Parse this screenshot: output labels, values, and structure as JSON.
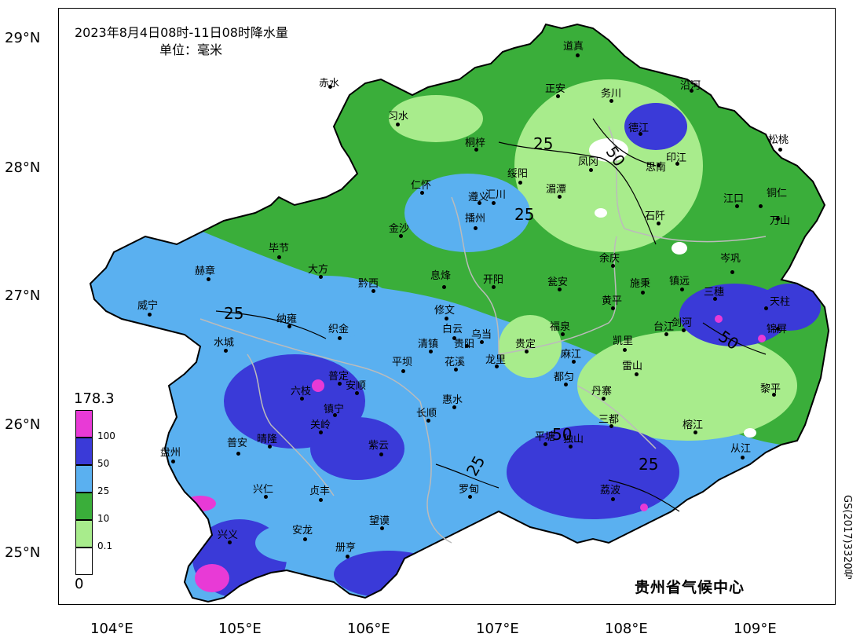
{
  "map": {
    "title": "2023年8月4日08时-11日08时降水量",
    "unit": "单位：毫米",
    "credit": "贵州省气候中心",
    "approval": "GS(2017)3320号",
    "lat_labels": [
      "29°N",
      "28°N",
      "27°N",
      "26°N",
      "25°N"
    ],
    "lon_labels": [
      "104°E",
      "105°E",
      "106°E",
      "107°E",
      "108°E",
      "109°E"
    ],
    "legend": {
      "max": "178.3",
      "min": "0",
      "levels": [
        {
          "label": "100",
          "color": "#e83ad6"
        },
        {
          "label": "50",
          "color": "#3a3ad8"
        },
        {
          "label": "25",
          "color": "#5ab0f0"
        },
        {
          "label": "10",
          "color": "#3aae3a"
        },
        {
          "label": "0.1",
          "color": "#a8ec8c"
        },
        {
          "label": "",
          "color": "#ffffff"
        }
      ]
    },
    "contour_labels": [
      "25",
      "50",
      "25",
      "25",
      "50",
      "50",
      "25",
      "25"
    ],
    "cities": [
      "道真",
      "赤水",
      "正安",
      "务川",
      "沿河",
      "习水",
      "德江",
      "桐梓",
      "松桃",
      "凤冈",
      "印江",
      "思南",
      "绥阳",
      "湄潭",
      "铜仁",
      "仁怀",
      "遵义",
      "汇川",
      "江口",
      "播州",
      "石阡",
      "万山",
      "金沙",
      "毕节",
      "余庆",
      "岑巩",
      "赫章",
      "大方",
      "黔西",
      "息烽",
      "开阳",
      "瓮安",
      "施秉",
      "镇远",
      "三穗",
      "天柱",
      "威宁",
      "纳雍",
      "修文",
      "黄平",
      "锦屏",
      "织金",
      "白云",
      "乌当",
      "福泉",
      "台江",
      "剑河",
      "水城",
      "清镇",
      "贵阳",
      "贵定",
      "凯里",
      "平坝",
      "花溪",
      "龙里",
      "麻江",
      "雷山",
      "普定",
      "安顺",
      "都匀",
      "六枝",
      "惠水",
      "丹寨",
      "黎平",
      "镇宁",
      "长顺",
      "关岭",
      "三都",
      "榕江",
      "普安",
      "晴隆",
      "平塘",
      "独山",
      "盘州",
      "紫云",
      "从江",
      "兴仁",
      "贞丰",
      "罗甸",
      "荔波",
      "安龙",
      "望谟",
      "兴义",
      "册亨"
    ]
  }
}
